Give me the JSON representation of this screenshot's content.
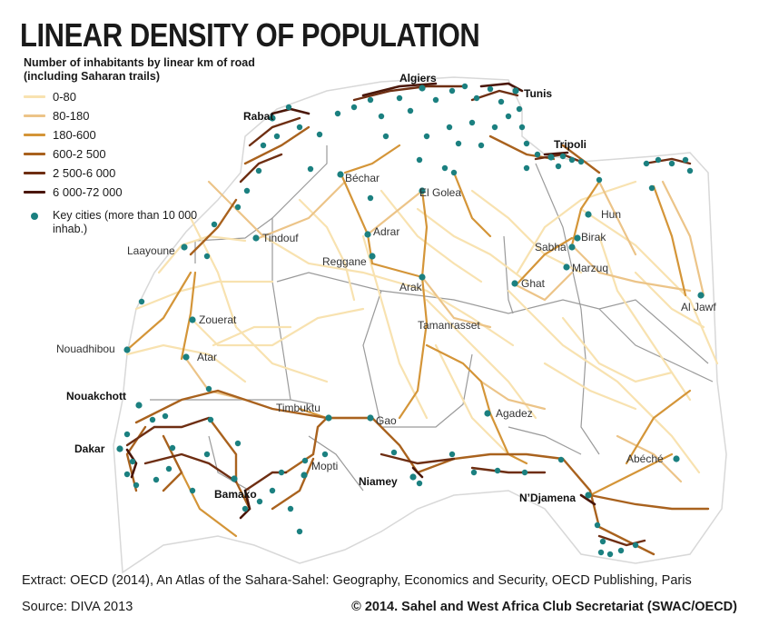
{
  "title": "LINEAR DENSITY OF POPULATION",
  "legend": {
    "heading": "Number of inhabitants by linear km of road (including Saharan trails)",
    "classes": [
      {
        "label": "0-80",
        "color": "#f8e2b0"
      },
      {
        "label": "80-180",
        "color": "#ecc488"
      },
      {
        "label": "180-600",
        "color": "#d49538"
      },
      {
        "label": "600-2 500",
        "color": "#a9621e"
      },
      {
        "label": "2 500-6 000",
        "color": "#6e2e12"
      },
      {
        "label": "6 000-72 000",
        "color": "#4a1608"
      }
    ],
    "cities_label": "Key cities (more than 10 000 inhab.)",
    "city_color": "#1b8080"
  },
  "labels": {
    "algiers": "Algiers",
    "tunis": "Tunis",
    "rabat": "Rabat",
    "tripoli": "Tripoli",
    "bechar": "Béchar",
    "el_golea": "El Golea",
    "hun": "Hun",
    "tindouf": "Tindouf",
    "adrar": "Adrar",
    "birak": "Birak",
    "sabha": "Sabha",
    "marzuq": "Marzuq",
    "laayoune": "Laayoune",
    "reggane": "Reggane",
    "ghat": "Ghat",
    "arak": "Arak",
    "zouerat": "Zouerat",
    "al_jawf": "Al Jawf",
    "tamanrasset": "Tamanrasset",
    "nouadhibou": "Nouadhibou",
    "atar": "Atar",
    "nouakchott": "Nouakchott",
    "timbuktu": "Timbuktu",
    "gao": "Gao",
    "agadez": "Agadez",
    "dakar": "Dakar",
    "mopti": "Mopti",
    "abeche": "Abéché",
    "niamey": "Niamey",
    "bamako": "Bamako",
    "ndjamena": "N’Djamena"
  },
  "footer": {
    "extract": "Extract: OECD (2014), An Atlas of the Sahara-Sahel: Geography, Economics  and Security, OECD Publishing, Paris",
    "source": "Source: DIVA 2013",
    "copyright": "© 2014. Sahel and West Africa Club Secretariat (SWAC/OECD)"
  }
}
